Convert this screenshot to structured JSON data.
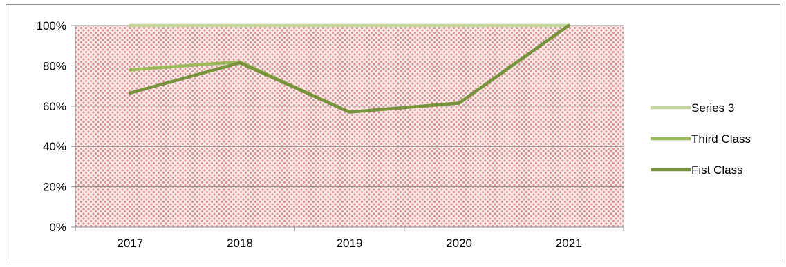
{
  "chart_data": {
    "type": "line",
    "categories": [
      "2017",
      "2018",
      "2019",
      "2020",
      "2021"
    ],
    "series": [
      {
        "name": "Series 3",
        "values": [
          1.0,
          1.0,
          1.0,
          1.0,
          1.0
        ],
        "color": "#c3d69b"
      },
      {
        "name": "Third Class",
        "values": [
          0.78,
          0.82,
          0.57,
          0.615,
          1.0
        ],
        "color": "#9bbb59"
      },
      {
        "name": "Fist Class",
        "values": [
          0.665,
          0.815,
          0.57,
          0.615,
          1.0
        ],
        "color": "#77933c"
      }
    ],
    "ylim": [
      0,
      1
    ],
    "yticks": [
      "0%",
      "20%",
      "40%",
      "60%",
      "80%",
      "100%"
    ],
    "grid": true,
    "legend_position": "right",
    "plot_background": "#f5d2d2",
    "plot_pattern_color": "#d99594"
  }
}
